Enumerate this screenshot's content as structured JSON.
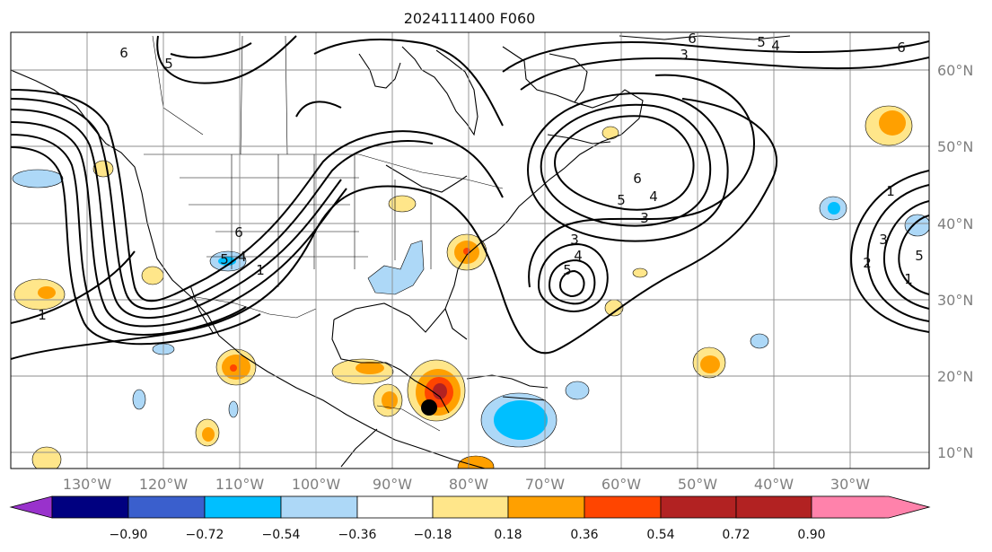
{
  "title": "2024111400 F060",
  "lat_labels": [
    "60°N",
    "50°N",
    "40°N",
    "30°N",
    "20°N",
    "10°N"
  ],
  "lon_labels": [
    "130°W",
    "120°W",
    "110°W",
    "100°W",
    "90°W",
    "80°W",
    "70°W",
    "60°W",
    "50°W",
    "40°W",
    "30°W"
  ],
  "colorbar": {
    "tick_labels": [
      "−0.90",
      "−0.72",
      "−0.54",
      "−0.36",
      "−0.18",
      "0.18",
      "0.36",
      "0.54",
      "0.72",
      "0.90"
    ],
    "colors": [
      "#9932cc",
      "#000080",
      "#3a5fcd",
      "#00bfff",
      "#add8f7",
      "#ffffff",
      "#ffe68a",
      "#ffa000",
      "#ff4500",
      "#b22222",
      "#ff82ab"
    ]
  },
  "contour_labels": {
    "c1": "6",
    "c2": "5",
    "c3": "6",
    "c4": "3",
    "c5": "5",
    "c6": "4",
    "c7": "6",
    "c8": "1",
    "c9": "6",
    "c10": "5",
    "c11": "4",
    "c12": "1",
    "c13": "6",
    "c14": "5",
    "c15": "4",
    "c16": "3",
    "c17": "3",
    "c18": "4",
    "c19": "5",
    "c20": "1",
    "c21": "3",
    "c22": "2",
    "c23": "5",
    "c24": "1"
  },
  "marker": "storm-position-dot"
}
